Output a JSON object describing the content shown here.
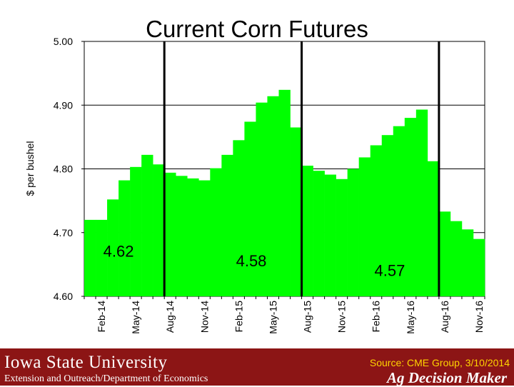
{
  "chart_data": {
    "type": "bar",
    "title": "Current Corn Futures",
    "ylabel": "$ per bushel",
    "xlabel": "",
    "ylim": [
      4.6,
      5.0
    ],
    "yticks": [
      "4.60",
      "4.70",
      "4.80",
      "4.90",
      "5.00"
    ],
    "grid": "horizontal",
    "bar_color": "#00ff00",
    "series": [
      {
        "values": [
          4.72,
          4.72,
          4.752,
          4.782,
          4.803,
          4.822,
          4.807,
          4.794,
          4.789,
          4.785,
          4.782,
          4.801,
          4.822,
          4.845,
          4.874,
          4.904,
          4.914,
          4.924,
          4.865,
          4.805,
          4.797,
          4.791,
          4.784,
          4.8,
          4.818,
          4.837,
          4.853,
          4.867,
          4.88,
          4.893,
          4.812,
          4.733,
          4.718,
          4.705,
          4.69
        ]
      }
    ],
    "x_tick_labels": [
      {
        "index": 1,
        "label": "Feb-14"
      },
      {
        "index": 4,
        "label": "May-14"
      },
      {
        "index": 7,
        "label": "Aug-14"
      },
      {
        "index": 10,
        "label": "Nov-14"
      },
      {
        "index": 13,
        "label": "Feb-15"
      },
      {
        "index": 16,
        "label": "May-15"
      },
      {
        "index": 19,
        "label": "Aug-15"
      },
      {
        "index": 22,
        "label": "Nov-15"
      },
      {
        "index": 25,
        "label": "Feb-16"
      },
      {
        "index": 28,
        "label": "May-16"
      },
      {
        "index": 31,
        "label": "Aug-16"
      },
      {
        "index": 34,
        "label": "Nov-16"
      }
    ],
    "dividers": [
      7,
      19,
      31
    ],
    "annotations": [
      {
        "label": "4.62",
        "x_index": 3,
        "y_value": 4.662
      },
      {
        "label": "4.58",
        "x_index": 14.6,
        "y_value": 4.647
      },
      {
        "label": "4.57",
        "x_index": 26.7,
        "y_value": 4.632
      }
    ]
  },
  "footer": {
    "university": "Iowa State University",
    "department": "Extension and Outreach/Department of Economics",
    "source": "Source: CME Group, 3/10/2014",
    "brand": "Ag Decision Maker"
  },
  "colors": {
    "footer_bg": "#8c1515",
    "source_text": "#ffd400",
    "bars": "#00ff00"
  }
}
